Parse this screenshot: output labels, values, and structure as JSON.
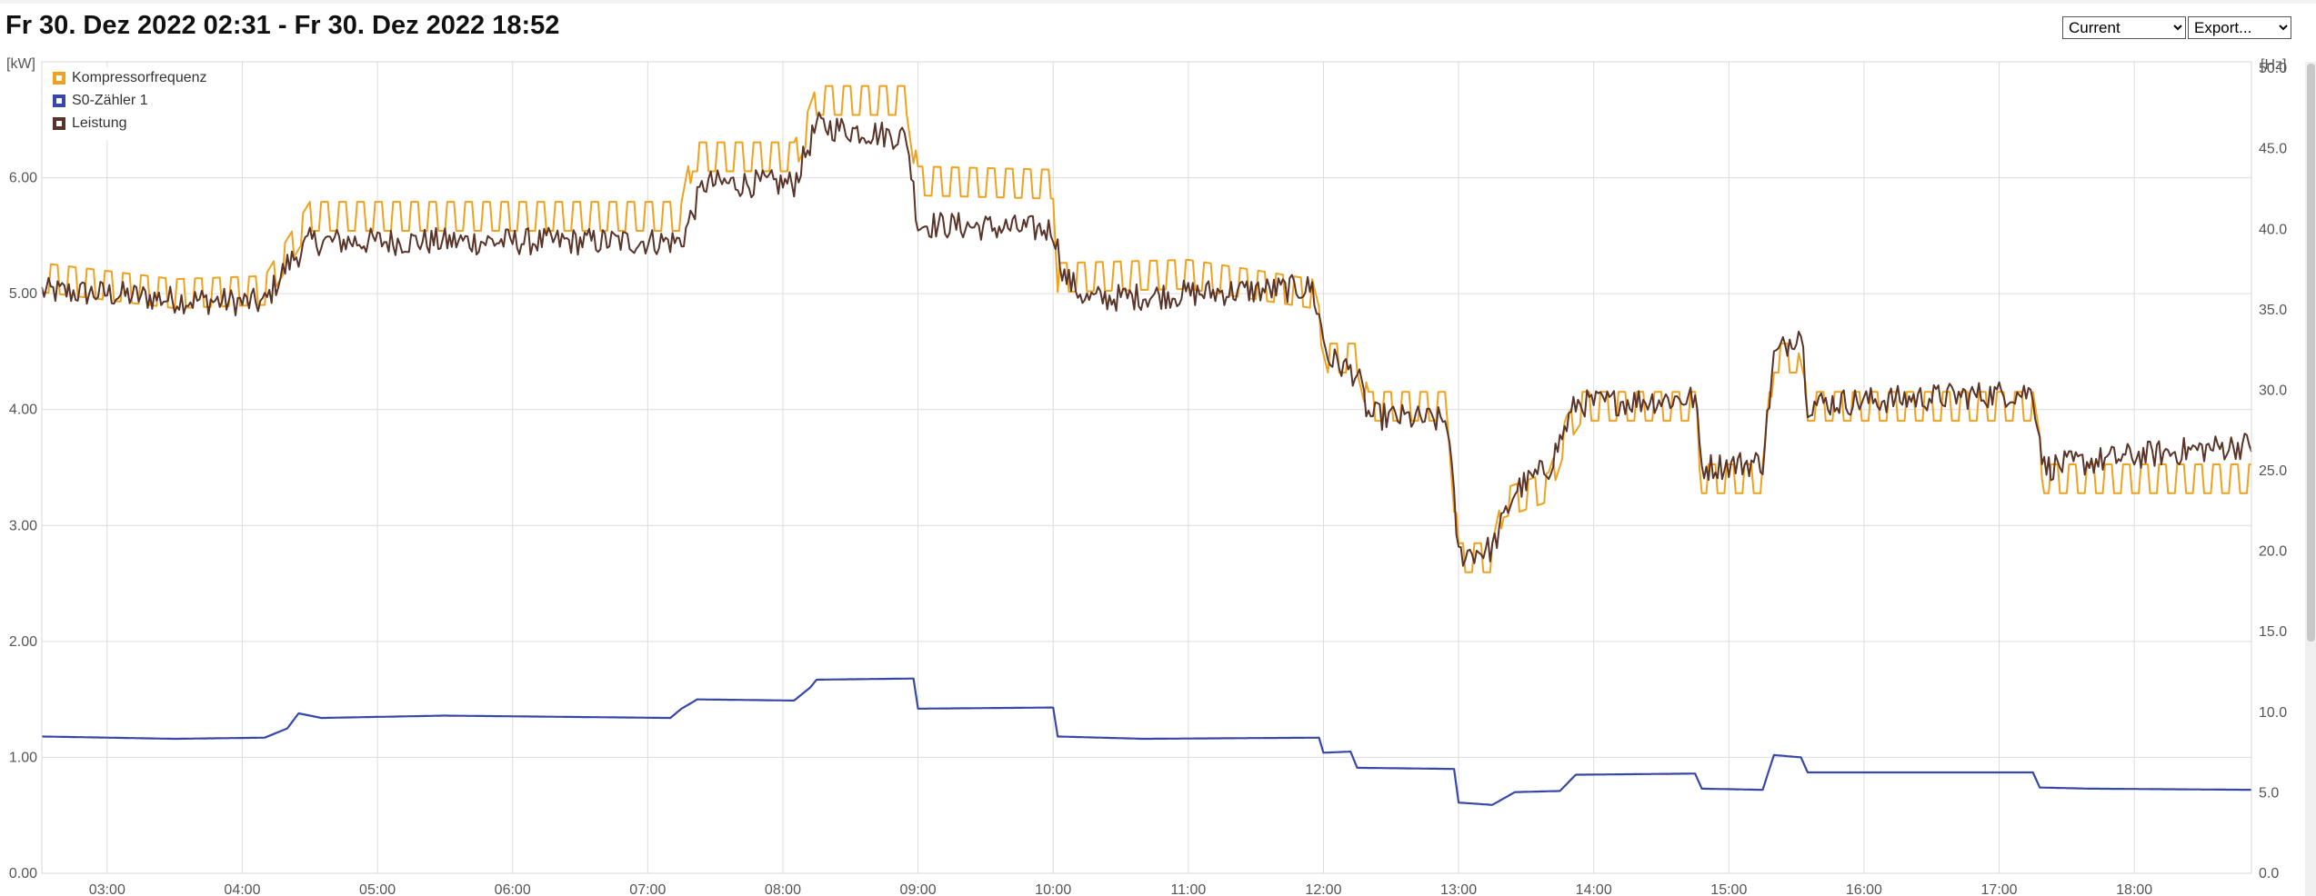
{
  "header": {
    "title": "Fr 30. Dez 2022 02:31 - Fr 30. Dez 2022 18:52",
    "view_select": {
      "selected": "Current"
    },
    "export_select": {
      "selected": "Export..."
    }
  },
  "chart_data": {
    "type": "line",
    "left_axis": {
      "unit_label": "[kW]",
      "range": [
        0,
        7
      ],
      "ticks": [
        "0.00",
        "1.00",
        "2.00",
        "3.00",
        "4.00",
        "5.00",
        "6.00"
      ]
    },
    "right_axis": {
      "unit_label": "[Hz]",
      "range": [
        0,
        50.4
      ],
      "ticks": [
        "0.0",
        "5.0",
        "10.0",
        "15.0",
        "20.0",
        "25.0",
        "30.0",
        "35.0",
        "40.0",
        "45.0",
        "50.0"
      ]
    },
    "x_axis": {
      "range": [
        "02:31",
        "18:52"
      ],
      "ticks": [
        "03:00",
        "04:00",
        "05:00",
        "06:00",
        "07:00",
        "08:00",
        "09:00",
        "10:00",
        "11:00",
        "12:00",
        "13:00",
        "14:00",
        "15:00",
        "16:00",
        "17:00",
        "18:00"
      ]
    },
    "grid": true,
    "legend_position": "top-left",
    "series": [
      {
        "name": "Kompressorfrequenz",
        "color": "#f0a11e",
        "axis": "right",
        "level": "[[\"02:31\",37.0],[\"03:30\",36.0],[\"04:10\",36.2],[\"04:20\",38.5],[\"04:30\",40.8],[\"07:15\",40.8],[\"07:20\",44.5],[\"08:05\",44.5],[\"08:10\",46.0],[\"08:15\",48.0],[\"08:55\",48.0],[\"09:00\",43.0],[\"10:00\",42.8],[\"10:02\",37.0],[\"11:00\",37.2],[\"11:55\",36.0],[\"12:02\",32.0],[\"12:15\",32.0],[\"12:20\",29.0],[\"12:55\",29.0],[\"13:00\",19.6],[\"13:15\",19.6],[\"13:20\",23.0],[\"13:40\",24.0],[\"13:48\",27.5],[\"13:55\",29.0],[\"14:45\",29.0],[\"14:48\",24.5],[\"15:15\",24.5],[\"15:20\",32.0],[\"15:30\",32.0],[\"15:35\",29.0],[\"17:15\",29.0],[\"17:20\",24.5],[\"18:52\",24.5]]",
        "ripple": 0.9,
        "ripple_every_min": 4,
        "values_note_ripple": "",
        "extra": null
      },
      {
        "name": "S0-Zähler 1",
        "color": "#3848a8",
        "axis": "left",
        "level": "[[\"02:31\",1.18],[\"03:30\",1.16],[\"04:10\",1.17],[\"04:20\",1.25],[\"04:25\",1.38],[\"04:35\",1.34],[\"05:30\",1.36],[\"07:10\",1.34],[\"07:15\",1.42],[\"07:22\",1.50],[\"08:05\",1.49],[\"08:12\",1.60],[\"08:15\",1.67],[\"08:58\",1.68],[\"09:00\",1.42],[\"10:00\",1.43],[\"10:02\",1.18],[\"10:40\",1.16],[\"11:58\",1.17],[\"12:00\",1.04],[\"12:12\",1.05],[\"12:15\",0.91],[\"12:58\",0.90],[\"13:00\",0.61],[\"13:15\",0.59],[\"13:25\",0.70],[\"13:45\",0.71],[\"13:52\",0.85],[\"14:45\",0.86],[\"14:48\",0.73],[\"15:15\",0.72],[\"15:20\",1.02],[\"15:32\",1.00],[\"15:35\",0.87],[\"17:15\",0.87],[\"17:18\",0.74],[\"17:40\",0.73],[\"18:52\",0.72]]",
        "ripple": 0.0,
        "ripple_every_min": 0,
        "values_note_ripple": "",
        "extra": null
      },
      {
        "name": "Leistung",
        "color": "#5a3428",
        "axis": "left",
        "level": "[[\"02:31\",5.02],[\"03:00\",5.00],[\"03:30\",4.95],[\"04:10\",4.92],[\"04:20\",5.25],[\"04:30\",5.45],[\"07:15\",5.45],[\"07:25\",5.95],[\"08:05\",5.95],[\"08:15\",6.45],[\"08:55\",6.35],[\"09:00\",5.60],[\"10:00\",5.55],[\"10:05\",5.15],[\"10:15\",4.95],[\"11:00\",5.00],[\"11:55\",5.05],[\"12:02\",4.45],[\"12:15\",4.30],[\"12:20\",3.95],[\"12:55\",3.90],[\"13:00\",2.75],[\"13:15\",2.80],[\"13:25\",3.30],[\"13:40\",3.50],[\"13:52\",4.05],[\"14:45\",4.10],[\"14:48\",3.50],[\"15:15\",3.55],[\"15:20\",4.45],[\"15:32\",4.70],[\"15:35\",4.05],[\"17:15\",4.15],[\"17:20\",3.50],[\"18:00\",3.60],[\"18:52\",3.70]]",
        "ripple": 0.12,
        "ripple_every_min": 2,
        "values_note_ripple": "",
        "extra": null
      }
    ]
  }
}
